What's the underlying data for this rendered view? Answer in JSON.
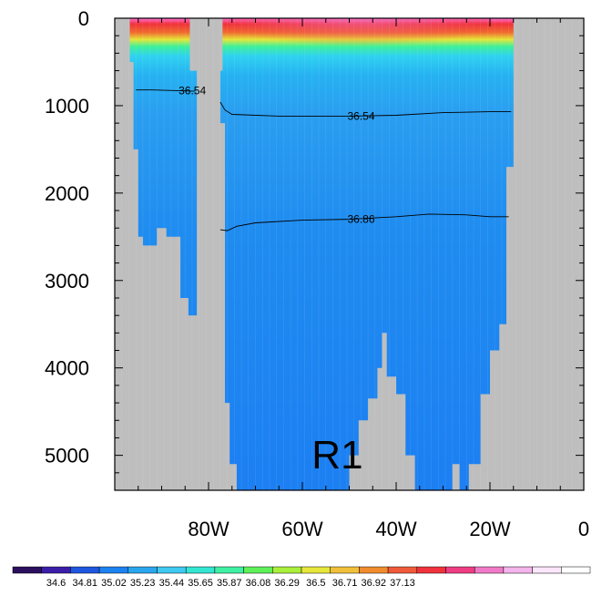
{
  "chart_data": {
    "type": "heatmap",
    "title": "",
    "xlabel": "",
    "ylabel": "",
    "x_ticks": [
      {
        "value": -80,
        "label": "80W"
      },
      {
        "value": -60,
        "label": "60W"
      },
      {
        "value": -40,
        "label": "40W"
      },
      {
        "value": -20,
        "label": "20W"
      },
      {
        "value": 0,
        "label": "0"
      }
    ],
    "y_ticks": [
      {
        "value": 0,
        "label": "0"
      },
      {
        "value": 1000,
        "label": "1000"
      },
      {
        "value": 2000,
        "label": "2000"
      },
      {
        "value": 3000,
        "label": "3000"
      },
      {
        "value": 4000,
        "label": "4000"
      },
      {
        "value": 5000,
        "label": "5000"
      }
    ],
    "xlim": [
      -100,
      0
    ],
    "ylim": [
      0,
      5400
    ],
    "y_reversed": true,
    "land_color": "#bebebe",
    "annotation": "R1",
    "colorbar": {
      "labels": [
        "34.6",
        "34.81",
        "35.02",
        "35.23",
        "35.44",
        "35.65",
        "35.87",
        "36.08",
        "36.29",
        "36.5",
        "36.71",
        "36.92",
        "37.13"
      ],
      "colors": [
        "#2b0f5e",
        "#3a1ea8",
        "#1f56e0",
        "#1c82f0",
        "#2aa6ee",
        "#3fc9f0",
        "#33e6d2",
        "#3ef0a2",
        "#5ff05a",
        "#a9f03a",
        "#e6e63a",
        "#f0c03a",
        "#f08c2e",
        "#f05a3a",
        "#f0323c",
        "#ef3c82",
        "#f07ac8",
        "#f4b4ec",
        "#fbe6fb",
        "#ffffff"
      ]
    },
    "contours": [
      {
        "label": "36.54",
        "points": [
          [
            -95.5,
            820
          ],
          [
            -92,
            820
          ],
          [
            -86,
            830
          ],
          [
            -83,
            835
          ]
        ]
      },
      {
        "label": "36.54",
        "points": [
          [
            -77.5,
            960
          ],
          [
            -76.5,
            1050
          ],
          [
            -75,
            1100
          ],
          [
            -65,
            1120
          ],
          [
            -50,
            1120
          ],
          [
            -40,
            1110
          ],
          [
            -30,
            1080
          ],
          [
            -20,
            1070
          ],
          [
            -15.5,
            1070
          ]
        ]
      },
      {
        "label": "36.86",
        "points": [
          [
            -77.5,
            2420
          ],
          [
            -76,
            2430
          ],
          [
            -74,
            2380
          ],
          [
            -70,
            2340
          ],
          [
            -60,
            2310
          ],
          [
            -50,
            2300
          ],
          [
            -40,
            2270
          ],
          [
            -33,
            2240
          ],
          [
            -25,
            2250
          ],
          [
            -20,
            2270
          ],
          [
            -16,
            2270
          ]
        ]
      }
    ]
  }
}
